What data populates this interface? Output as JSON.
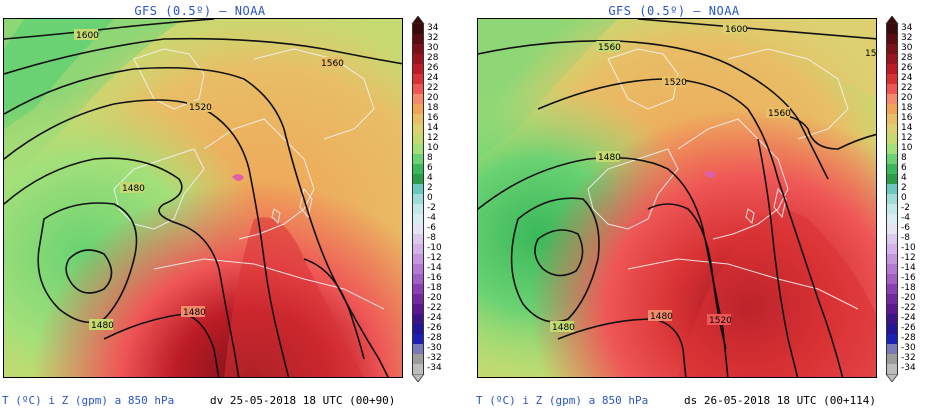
{
  "colors": {
    "title": "#2a55c8",
    "contour": "#111111",
    "coast": "#f2f2f2"
  },
  "legend": {
    "labels": [
      "34",
      "32",
      "30",
      "28",
      "26",
      "24",
      "22",
      "20",
      "18",
      "16",
      "14",
      "12",
      "10",
      "8",
      "6",
      "4",
      "2",
      "0",
      "-2",
      "-4",
      "-6",
      "-8",
      "-10",
      "-12",
      "-14",
      "-16",
      "-18",
      "-20",
      "-22",
      "-24",
      "-26",
      "-28",
      "-30",
      "-32",
      "-34"
    ],
    "colors": [
      "#3a0a0a",
      "#5c0c10",
      "#7a1018",
      "#9c1420",
      "#bd1c26",
      "#d83234",
      "#ef5656",
      "#f38a6c",
      "#f0a458",
      "#e8be66",
      "#dcd070",
      "#c4da70",
      "#a4e07a",
      "#6ad272",
      "#3ab85a",
      "#2a9c4a",
      "#6ac8c0",
      "#a0dcd8",
      "#c4e8ec",
      "#d8eef4",
      "#e4e4f4",
      "#dccaee",
      "#d2b2e8",
      "#c696dc",
      "#b47ad0",
      "#a060c4",
      "#8a40b4",
      "#7428a0",
      "#5c1890",
      "#3c1488",
      "#241498",
      "#1c20b4",
      "#7a7ab8",
      "#9c9c9c",
      "#bcbcbc"
    ]
  },
  "panels": [
    {
      "title": "GFS (0.5º) — NOAA",
      "caption_var": "T (ºC) i Z (gpm) a 850 hPa",
      "caption_date": "dv 25-05-2018 18 UTC (00+90)",
      "contour_labels": [
        "1600",
        "1560",
        "1520",
        "1480",
        "1480",
        "1480"
      ]
    },
    {
      "title": "GFS (0.5º) — NOAA",
      "caption_var": "T (ºC) i Z (gpm) a 850 hPa",
      "caption_date": "ds 26-05-2018 18 UTC (00+114)",
      "contour_labels": [
        "1600",
        "1560",
        "1520",
        "1560",
        "1480",
        "1480",
        "1480",
        "1520",
        "15"
      ]
    }
  ]
}
